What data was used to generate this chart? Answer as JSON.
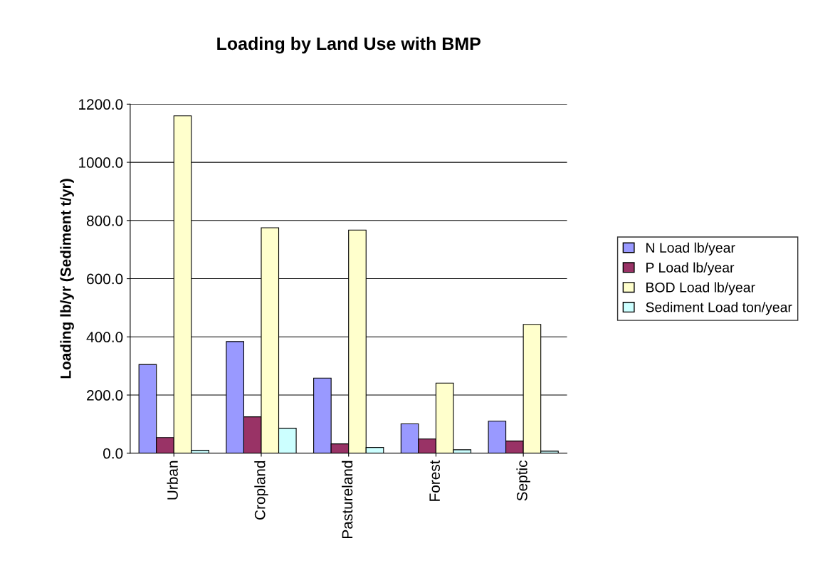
{
  "chart_data": {
    "type": "bar",
    "title": "Loading by Land Use with BMP",
    "ylabel": "Loading lb/yr (Sediment t/yr)",
    "categories": [
      "Urban",
      "Cropland",
      "Pastureland",
      "Forest",
      "Septic"
    ],
    "series": [
      {
        "name": "N Load lb/year",
        "color": "#9999ff",
        "values": [
          305,
          384,
          258,
          101,
          110
        ]
      },
      {
        "name": "P Load lb/year",
        "color": "#993366",
        "values": [
          54,
          125,
          32,
          49,
          42
        ]
      },
      {
        "name": "BOD Load lb/year",
        "color": "#ffffcc",
        "values": [
          1160,
          775,
          767,
          241,
          443
        ]
      },
      {
        "name": "Sediment Load ton/year",
        "color": "#ccffff",
        "values": [
          10,
          86,
          20,
          12,
          7
        ]
      }
    ],
    "ylim": [
      0,
      1200
    ],
    "yticks": [
      {
        "value": 0,
        "label": "0.0"
      },
      {
        "value": 200,
        "label": "200.0"
      },
      {
        "value": 400,
        "label": "400.0"
      },
      {
        "value": 600,
        "label": "600.0"
      },
      {
        "value": 800,
        "label": "800.0"
      },
      {
        "value": 1000,
        "label": "1000.0"
      },
      {
        "value": 1200,
        "label": "1200.0"
      }
    ],
    "grid": "y",
    "legend": "right"
  }
}
